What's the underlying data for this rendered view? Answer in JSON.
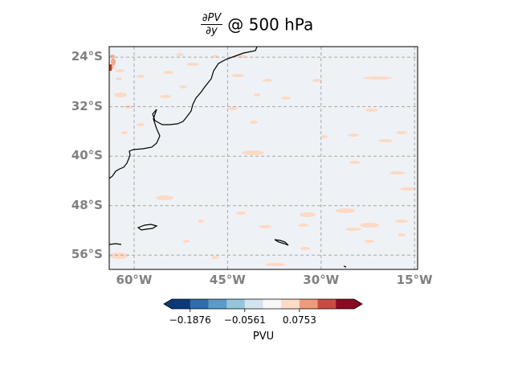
{
  "title": {
    "numerator": "∂PV",
    "denominator": "∂y",
    "suffix": "@ 500 hPa"
  },
  "map": {
    "extent": {
      "lon_min": -64,
      "lon_max": -14.5,
      "lat_min": -58.3,
      "lat_max": -22.3
    },
    "background_color": "#eef2f6",
    "grid": true,
    "lat_gridlines": [
      -24,
      -32,
      -40,
      -48,
      -56
    ],
    "lon_gridlines": [
      -60,
      -45,
      -30,
      -15
    ],
    "lat_labels": [
      "24°S",
      "32°S",
      "40°S",
      "48°S",
      "56°S"
    ],
    "lon_labels": [
      "60°W",
      "45°W",
      "30°W",
      "15°W"
    ],
    "coastline_color": "#000000",
    "contour_color_light": "#fdd9c4",
    "contour_color_medium": "#f5a98a",
    "contour_color_dark": "#c0392b"
  },
  "colorbar": {
    "colors": [
      "#0c3a78",
      "#2d6cad",
      "#5a9bc9",
      "#96c4dd",
      "#d1e4f0",
      "#f7f7f7",
      "#fddbc7",
      "#ef9a7a",
      "#cb4a43",
      "#8c0a23"
    ],
    "ticks": [
      "−0.1876",
      "−0.0561",
      "0.0753"
    ],
    "label": "PVU"
  }
}
